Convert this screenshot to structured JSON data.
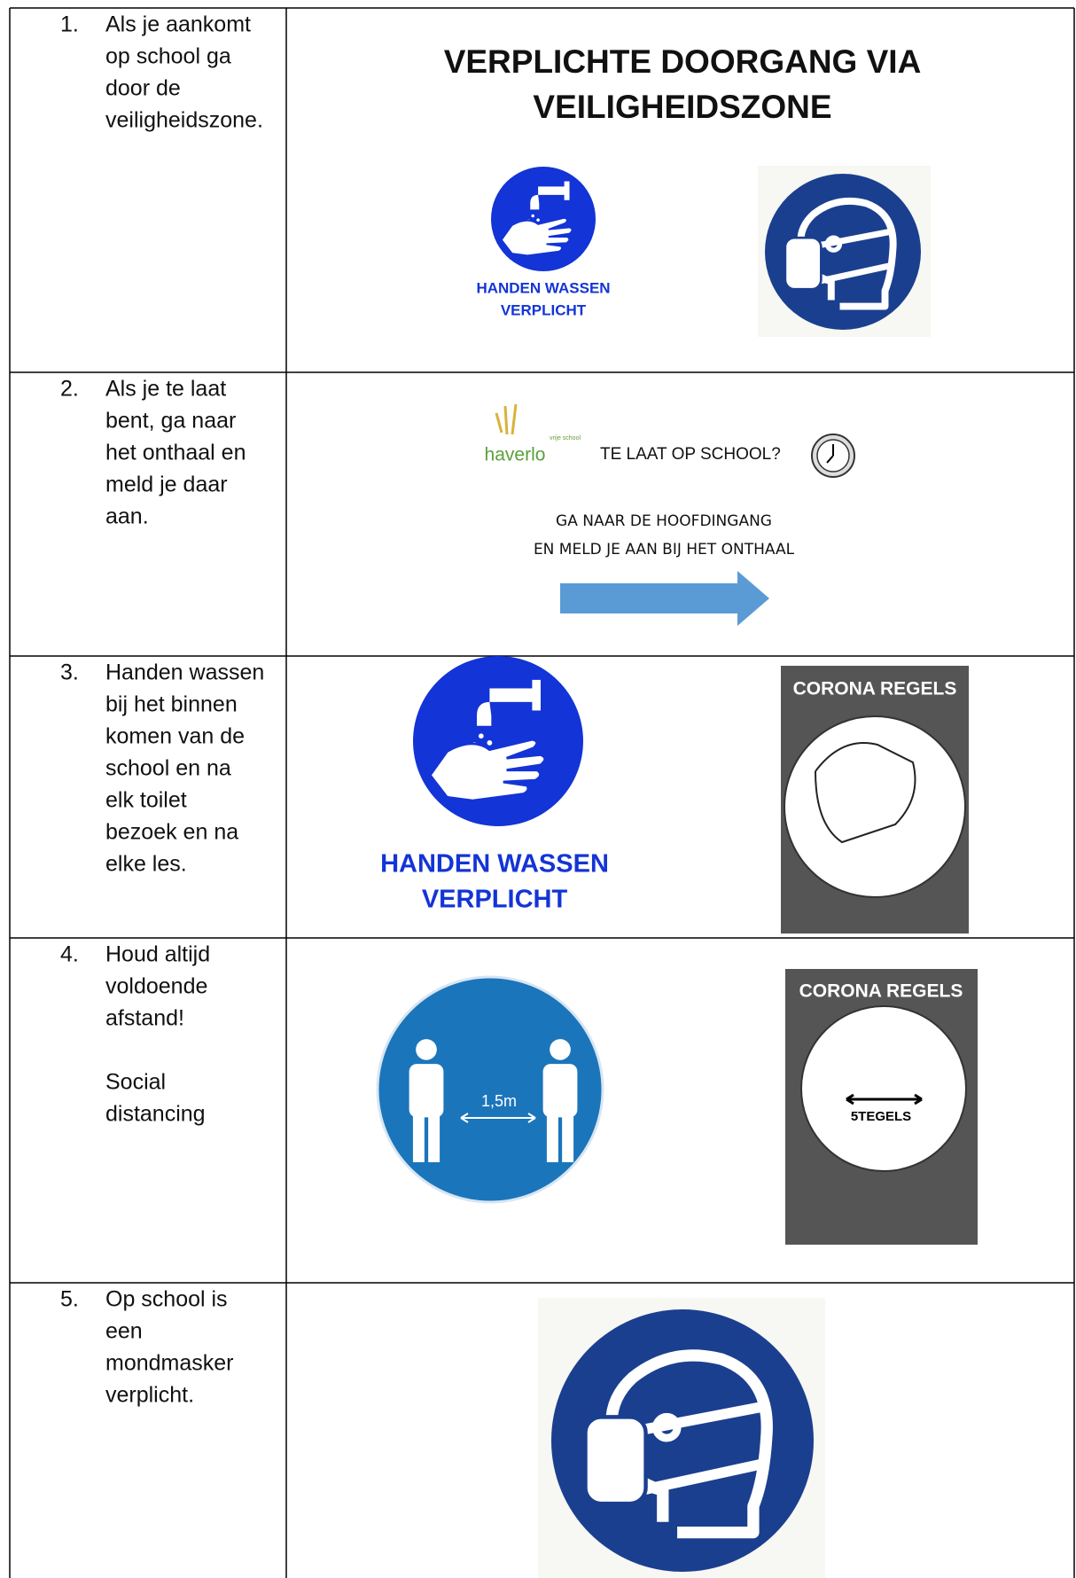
{
  "table": {
    "rows": [
      {
        "number": "1.",
        "paragraphs": [
          [
            "Als je aankomt",
            "op school ga",
            "door de",
            "veiligheidszone."
          ]
        ],
        "panel": {
          "title": [
            "VERPLICHTE DOORGANG VIA",
            "VEILIGHEIDSZONE"
          ],
          "sign": [
            "HANDEN WASSEN",
            "VERPLICHT"
          ]
        }
      },
      {
        "number": "2.",
        "paragraphs": [
          [
            "Als je te laat",
            "bent, ga naar",
            "het onthaal en",
            "meld je  daar",
            "aan."
          ]
        ],
        "panel": {
          "logo": "haverlo",
          "logo_sub": "vrije school",
          "question": "TE LAAT OP SCHOOL?",
          "instruction": [
            "GA NAAR DE HOOFDINGANG",
            "EN MELD JE AAN BIJ HET ONTHAAL"
          ]
        }
      },
      {
        "number": "3.",
        "paragraphs": [
          [
            "Handen wassen",
            "bij het binnen",
            "komen van de",
            "school en na",
            "elk toilet",
            "bezoek en na",
            "elke les."
          ]
        ],
        "panel": {
          "sign": [
            "HANDEN WASSEN",
            "VERPLICHT"
          ],
          "poster": "CORONA REGELS"
        }
      },
      {
        "number": "4.",
        "paragraphs": [
          [
            "Houd altijd",
            "voldoende",
            "afstand!"
          ],
          [
            "Social",
            "distancing"
          ]
        ],
        "panel": {
          "distance": "1,5m",
          "poster": "CORONA REGELS",
          "poster_text": "5TEGELS"
        }
      },
      {
        "number": "5.",
        "paragraphs": [
          [
            "Op school is",
            "een",
            "mondmasker",
            "verplicht."
          ]
        ]
      }
    ]
  }
}
